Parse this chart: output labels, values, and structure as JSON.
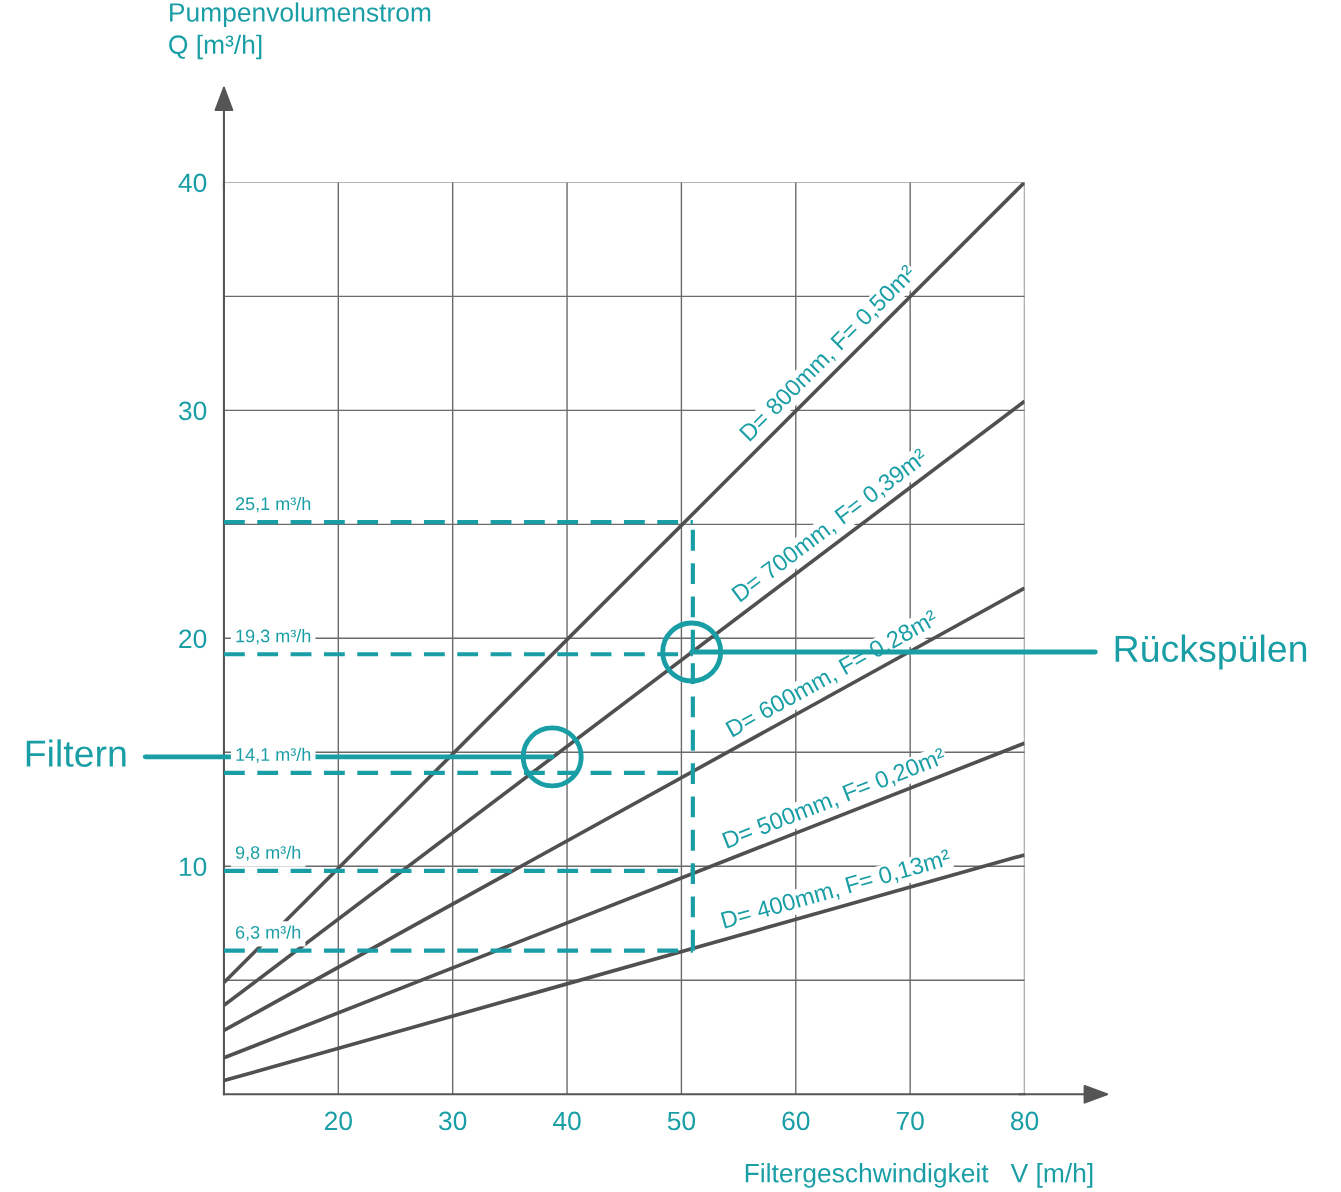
{
  "chart_data": {
    "type": "line",
    "xlabel": "Filtergeschwindigkeit   V [m/h]",
    "ylabel": "Pumpenvolumenstrom\nQ [m³/h]",
    "xlim": [
      10,
      80
    ],
    "ylim": [
      0,
      40
    ],
    "xticks": [
      20,
      30,
      40,
      50,
      60,
      70,
      80
    ],
    "yticks": [
      {
        "value": 5,
        "label": null
      },
      10,
      {
        "value": 15,
        "label": null
      },
      20,
      {
        "value": 25,
        "label": null
      },
      30,
      {
        "value": 35,
        "label": null
      },
      40
    ],
    "grid": true,
    "series": [
      {
        "name": "D= 800mm, F= 0,50m²",
        "color": "#505050",
        "x": [
          10,
          80
        ],
        "values": [
          4.9,
          40
        ]
      },
      {
        "name": "D= 700mm, F= 0,39m²",
        "color": "#505050",
        "x": [
          10,
          80
        ],
        "values": [
          3.9,
          30.4
        ]
      },
      {
        "name": "D= 600mm, F= 0,28m²",
        "color": "#505050",
        "x": [
          10,
          80
        ],
        "values": [
          2.8,
          22.2
        ]
      },
      {
        "name": "D= 500mm, F= 0,20m²",
        "color": "#505050",
        "x": [
          10,
          80
        ],
        "values": [
          1.6,
          15.4
        ]
      },
      {
        "name": "D= 400mm, F= 0,13m²",
        "color": "#505050",
        "x": [
          10,
          80
        ],
        "values": [
          0.6,
          10.5
        ]
      },
      {
        "color": "#1a9ea6",
        "line_style": "dashed",
        "x": [
          10,
          51
        ],
        "values": [
          25.1,
          25.1
        ],
        "value_labels": [
          "25,1 m³/h",
          null
        ]
      },
      {
        "color": "#1a9ea6",
        "line_style": "dashed",
        "x": [
          10,
          51
        ],
        "values": [
          19.3,
          19.3
        ],
        "value_labels": [
          "19,3 m³/h",
          null
        ]
      },
      {
        "color": "#1a9ea6",
        "line_style": "dashed",
        "x": [
          10,
          51
        ],
        "values": [
          14.1,
          14.1
        ],
        "value_labels": [
          "14,1 m³/h",
          null
        ]
      },
      {
        "color": "#1a9ea6",
        "line_style": "dashed",
        "x": [
          10,
          51
        ],
        "values": [
          9.8,
          9.8
        ],
        "value_labels": [
          "9,8 m³/h",
          null
        ]
      },
      {
        "color": "#1a9ea6",
        "line_style": "dashed",
        "x": [
          10,
          51
        ],
        "values": [
          6.3,
          6.3
        ],
        "value_labels": [
          "6,3 m³/h",
          null
        ]
      },
      {
        "color": "#1a9ea6",
        "line_style": "dashed",
        "x": [
          51,
          51
        ],
        "values": [
          6.3,
          25.1
        ]
      }
    ],
    "annotations": [
      {
        "text": "Filtern",
        "x": 38.7,
        "y": 14.8
      },
      {
        "text": "Rückspülen",
        "x": 50.9,
        "y": 19.4
      }
    ]
  }
}
